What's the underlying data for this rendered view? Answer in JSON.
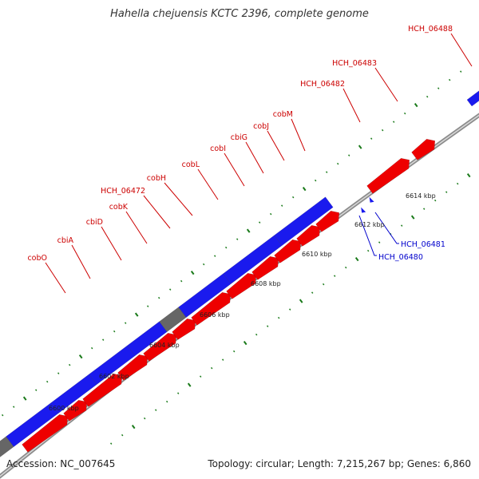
{
  "title": "Hahella chejuensis KCTC 2396, complete genome",
  "footer": {
    "accession": "Accession: NC_007645",
    "summary": "Topology: circular; Length: 7,215,267 bp; Genes: 6,860"
  },
  "colors": {
    "forward_cds": "#ee0000",
    "reverse_cds": "#1a1aee",
    "other": "#666666",
    "rna": "#3a7bbf",
    "misc": "#ff9900",
    "backbone": "#8c8c8c",
    "label_forward": "#cc0000",
    "label_reverse": "#0000cc",
    "tick": "#1a7a1a"
  },
  "scale_labels": [
    {
      "text": "6600 kbp"
    },
    {
      "text": "6602 kbp"
    },
    {
      "text": "6604 kbp"
    },
    {
      "text": "6606 kbp"
    },
    {
      "text": "6608 kbp"
    },
    {
      "text": "6610 kbp"
    },
    {
      "text": "6612 kbp"
    },
    {
      "text": "6614 kbp"
    }
  ],
  "forward_gene_labels": [
    {
      "text": "cobO"
    },
    {
      "text": "cbiA"
    },
    {
      "text": "cbiD"
    },
    {
      "text": "cobK"
    },
    {
      "text": "HCH_06472"
    },
    {
      "text": "cobH"
    },
    {
      "text": "cobL"
    },
    {
      "text": "cobI"
    },
    {
      "text": "cbiG"
    },
    {
      "text": "cobJ"
    },
    {
      "text": "cobM"
    },
    {
      "text": "HCH_06482"
    },
    {
      "text": "HCH_06483"
    },
    {
      "text": "HCH_06488"
    }
  ],
  "reverse_gene_labels": [
    {
      "text": "HCH_06481"
    },
    {
      "text": "HCH_06480"
    }
  ]
}
